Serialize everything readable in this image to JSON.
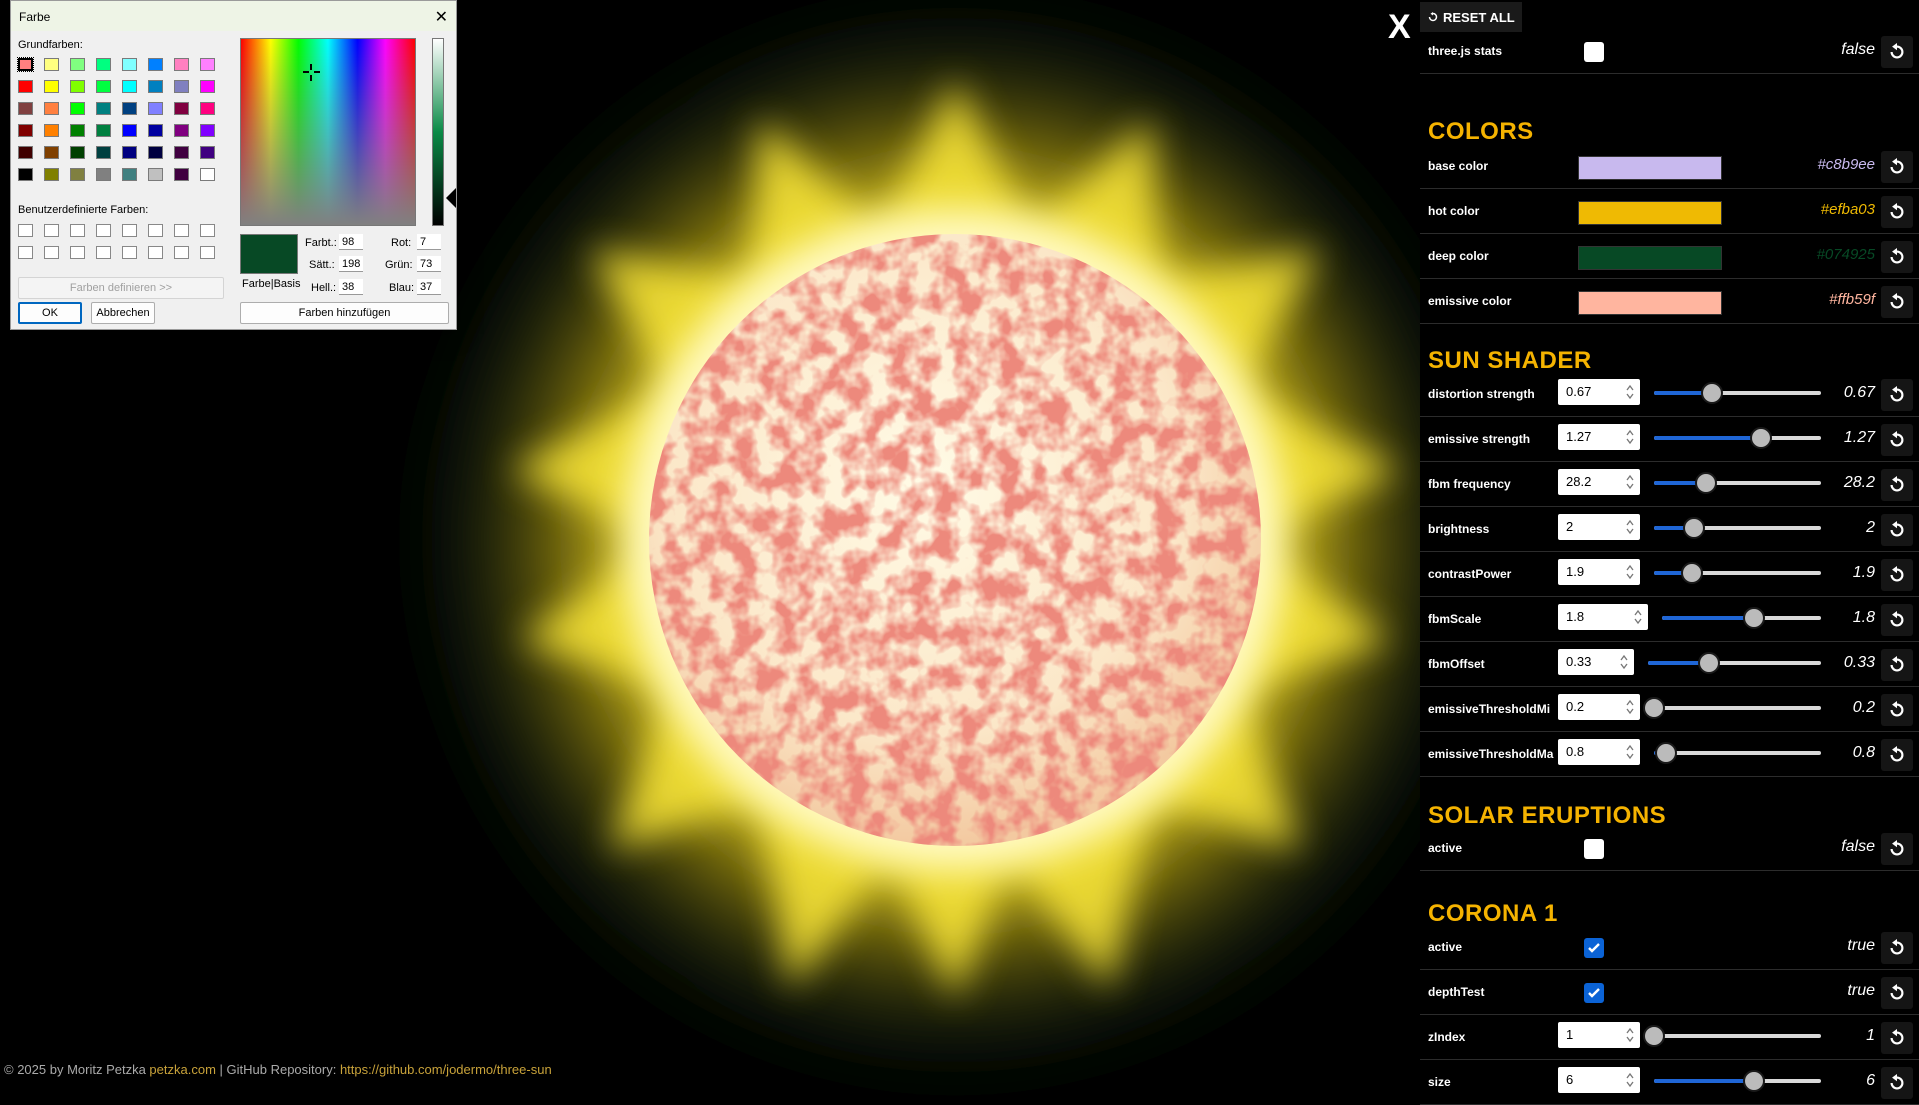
{
  "footer": {
    "prefix": "© 2025 by Moritz Petzka ",
    "site": "petzka.com",
    "sep": " | GitHub Repository: ",
    "repo": "https://github.com/jodermo/three-sun"
  },
  "close_overlay": "X",
  "panel": {
    "reset_all": "RESET ALL",
    "stats": {
      "label": "three.js stats",
      "value": "false",
      "checked": false
    },
    "colors": {
      "title": "COLORS",
      "items": [
        {
          "label": "base color",
          "hex": "#c8b9ee"
        },
        {
          "label": "hot color",
          "hex": "#efba03"
        },
        {
          "label": "deep color",
          "hex": "#074925"
        },
        {
          "label": "emissive color",
          "hex": "#ffb59f"
        }
      ]
    },
    "sun_shader": {
      "title": "SUN SHADER",
      "items": [
        {
          "label": "distortion strength",
          "input": "0.67",
          "value": "0.67",
          "fraction": 0.35
        },
        {
          "label": "emissive strength",
          "input": "1.27",
          "value": "1.27",
          "fraction": 0.64
        },
        {
          "label": "fbm frequency",
          "input": "28.2",
          "value": "28.2",
          "fraction": 0.31
        },
        {
          "label": "brightness",
          "input": "2",
          "value": "2",
          "fraction": 0.24
        },
        {
          "label": "contrastPower",
          "input": "1.9",
          "value": "1.9",
          "fraction": 0.23
        },
        {
          "label": "fbmScale",
          "input": "1.8",
          "value": "1.8",
          "fraction": 0.58
        },
        {
          "label": "fbmOffset",
          "input": "0.33",
          "value": "0.33",
          "fraction": 0.35
        },
        {
          "label": "emissiveThresholdMi",
          "input": "0.2",
          "value": "0.2",
          "fraction": 0.0
        },
        {
          "label": "emissiveThresholdMa",
          "input": "0.8",
          "value": "0.8",
          "fraction": 0.07
        }
      ]
    },
    "solar_eruptions": {
      "title": "SOLAR ERUPTIONS",
      "active": {
        "label": "active",
        "value": "false",
        "checked": false
      }
    },
    "corona1": {
      "title": "CORONA 1",
      "active": {
        "label": "active",
        "value": "true",
        "checked": true
      },
      "depthTest": {
        "label": "depthTest",
        "value": "true",
        "checked": true
      },
      "zIndex": {
        "label": "zIndex",
        "input": "1",
        "value": "1",
        "fraction": 0.0
      },
      "size": {
        "label": "size",
        "input": "6",
        "value": "6",
        "fraction": 0.6
      }
    }
  },
  "dialog": {
    "title": "Farbe",
    "basic_colors_label": "Grundfarben:",
    "custom_colors_label": "Benutzerdefinierte Farben:",
    "define_button": "Farben definieren >>",
    "ok": "OK",
    "cancel": "Abbrechen",
    "add_button": "Farben hinzufügen",
    "preview_label": "Farbe|Basis",
    "hue_label": "Farbt.:",
    "hue": "98",
    "sat_label": "Sätt.:",
    "sat": "198",
    "lum_label": "Hell.:",
    "lum": "38",
    "red_label": "Rot:",
    "red": "7",
    "green_label": "Grün:",
    "green": "73",
    "blue_label": "Blau:",
    "blue": "37",
    "basic_colors": [
      "#ff8080",
      "#ffff80",
      "#80ff80",
      "#00ff80",
      "#80ffff",
      "#0080ff",
      "#ff80c0",
      "#ff80ff",
      "#ff0000",
      "#ffff00",
      "#80ff00",
      "#00ff40",
      "#00ffff",
      "#0080c0",
      "#8080c0",
      "#ff00ff",
      "#804040",
      "#ff8040",
      "#00ff00",
      "#008080",
      "#004080",
      "#8080ff",
      "#800040",
      "#ff0080",
      "#800000",
      "#ff8000",
      "#008000",
      "#008040",
      "#0000ff",
      "#0000a0",
      "#800080",
      "#8000ff",
      "#400000",
      "#804000",
      "#004000",
      "#004040",
      "#000080",
      "#000040",
      "#400040",
      "#400080",
      "#000000",
      "#808000",
      "#808040",
      "#808080",
      "#408080",
      "#c0c0c0",
      "#400040",
      "#ffffff"
    ]
  }
}
